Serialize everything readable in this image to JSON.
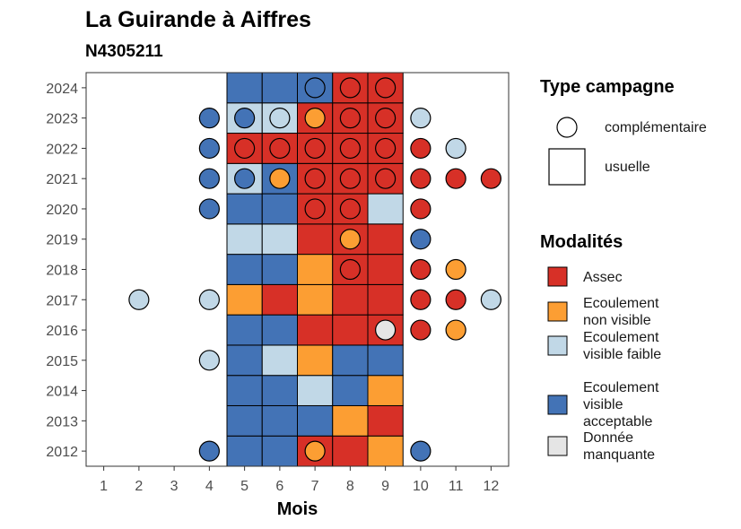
{
  "chart_data": {
    "type": "heatmap",
    "title": "La Guirande à Aiffres",
    "subtitle": "N4305211",
    "xlabel": "Mois",
    "ylabel": "",
    "x_ticks": [
      "1",
      "2",
      "3",
      "4",
      "5",
      "6",
      "7",
      "8",
      "9",
      "10",
      "11",
      "12"
    ],
    "y_ticks": [
      "2012",
      "2013",
      "2014",
      "2015",
      "2016",
      "2017",
      "2018",
      "2019",
      "2020",
      "2021",
      "2022",
      "2023",
      "2024"
    ],
    "xlim": [
      0.5,
      12.5
    ],
    "ylim": [
      2011.5,
      2024.5
    ],
    "legend_shape": {
      "title": "Type campagne",
      "entries": [
        {
          "key": "complementaire",
          "label": "complémentaire",
          "shape": "circle"
        },
        {
          "key": "usuelle",
          "label": "usuelle",
          "shape": "square"
        }
      ]
    },
    "legend_fill": {
      "title": "Modalités",
      "entries": [
        {
          "key": "A",
          "label": "Assec",
          "color": "#d73027"
        },
        {
          "key": "N",
          "label": "Ecoulement non visible",
          "color": "#fc9e33"
        },
        {
          "key": "F",
          "label": "Ecoulement visible faible",
          "color": "#c1d8e7"
        },
        {
          "key": "V",
          "label": "Ecoulement visible acceptable",
          "color": "#4373b6"
        },
        {
          "key": "M",
          "label": "Donnée manquante",
          "color": "#e5e5e5"
        }
      ]
    },
    "squares": [
      {
        "year": 2012,
        "values": {
          "5": "V",
          "6": "V",
          "7": "A",
          "8": "A",
          "9": "N"
        }
      },
      {
        "year": 2013,
        "values": {
          "5": "V",
          "6": "V",
          "7": "V",
          "8": "N",
          "9": "A"
        }
      },
      {
        "year": 2014,
        "values": {
          "5": "V",
          "6": "V",
          "7": "F",
          "8": "V",
          "9": "N"
        }
      },
      {
        "year": 2015,
        "values": {
          "5": "V",
          "6": "F",
          "7": "N",
          "8": "V",
          "9": "V"
        }
      },
      {
        "year": 2016,
        "values": {
          "5": "V",
          "6": "V",
          "7": "A",
          "8": "A",
          "9": "A"
        }
      },
      {
        "year": 2017,
        "values": {
          "5": "N",
          "6": "A",
          "7": "N",
          "8": "A",
          "9": "A"
        }
      },
      {
        "year": 2018,
        "values": {
          "5": "V",
          "6": "V",
          "7": "N",
          "8": "A",
          "9": "A"
        }
      },
      {
        "year": 2019,
        "values": {
          "5": "F",
          "6": "F",
          "7": "A",
          "8": "A",
          "9": "A"
        }
      },
      {
        "year": 2020,
        "values": {
          "5": "V",
          "6": "V",
          "7": "A",
          "8": "A",
          "9": "F"
        }
      },
      {
        "year": 2021,
        "values": {
          "5": "F",
          "6": "V",
          "7": "A",
          "8": "A",
          "9": "A"
        }
      },
      {
        "year": 2022,
        "values": {
          "5": "A",
          "6": "A",
          "7": "A",
          "8": "A",
          "9": "A"
        }
      },
      {
        "year": 2023,
        "values": {
          "5": "F",
          "6": "F",
          "7": "A",
          "8": "A",
          "9": "A"
        }
      },
      {
        "year": 2024,
        "values": {
          "5": "V",
          "6": "V",
          "7": "V",
          "8": "A",
          "9": "A"
        }
      }
    ],
    "circles": [
      {
        "year": 2012,
        "values": {
          "4": "V",
          "7": "N",
          "10": "V"
        }
      },
      {
        "year": 2015,
        "values": {
          "4": "F"
        }
      },
      {
        "year": 2016,
        "values": {
          "9": "M",
          "10": "A",
          "11": "N"
        }
      },
      {
        "year": 2017,
        "values": {
          "2": "F",
          "4": "F",
          "10": "A",
          "11": "A",
          "12": "F"
        }
      },
      {
        "year": 2018,
        "values": {
          "8": "A",
          "10": "A",
          "11": "N"
        }
      },
      {
        "year": 2019,
        "values": {
          "8": "N",
          "10": "V"
        }
      },
      {
        "year": 2020,
        "values": {
          "4": "V",
          "7": "A",
          "8": "A",
          "10": "A"
        }
      },
      {
        "year": 2021,
        "values": {
          "4": "V",
          "5": "V",
          "6": "N",
          "7": "A",
          "8": "A",
          "9": "A",
          "10": "A",
          "11": "A",
          "12": "A"
        }
      },
      {
        "year": 2022,
        "values": {
          "4": "V",
          "5": "A",
          "6": "A",
          "7": "A",
          "8": "A",
          "9": "A",
          "10": "A",
          "11": "F"
        }
      },
      {
        "year": 2023,
        "values": {
          "4": "V",
          "5": "V",
          "6": "F",
          "7": "N",
          "8": "A",
          "9": "A",
          "10": "F"
        }
      },
      {
        "year": 2024,
        "values": {
          "7": "V",
          "8": "A",
          "9": "A"
        }
      }
    ]
  }
}
